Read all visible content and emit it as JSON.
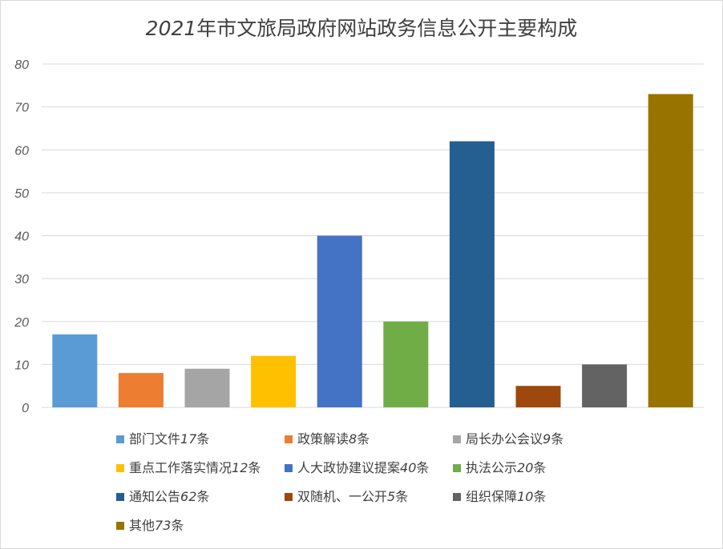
{
  "chart_data": {
    "type": "bar",
    "title": "2021年市文旅局政府网站政务信息公开主要构成",
    "title_year": "2021",
    "title_rest": "年市文旅局政府网站政务信息公开主要构成",
    "categories": [
      "部门文件17条",
      "政策解读8条",
      "局长办公会议9条",
      "重点工作落实情况12条",
      "人大政协建议提案40条",
      "执法公示20条",
      "通知公告62条",
      "双随机、一公开5条",
      "组织保障10条",
      "其他73条"
    ],
    "values": [
      17,
      8,
      9,
      12,
      40,
      20,
      62,
      5,
      10,
      73
    ],
    "colors": [
      "#5b9bd5",
      "#ed7d31",
      "#a5a5a5",
      "#ffc000",
      "#4472c4",
      "#70ad47",
      "#255e91",
      "#9e480e",
      "#636363",
      "#997300"
    ],
    "ylim": [
      0,
      80
    ],
    "yticks": [
      "0",
      "10",
      "20",
      "30",
      "40",
      "50",
      "60",
      "70",
      "80"
    ],
    "grid": true,
    "legend_position": "bottom",
    "xlabel": "",
    "ylabel": ""
  }
}
